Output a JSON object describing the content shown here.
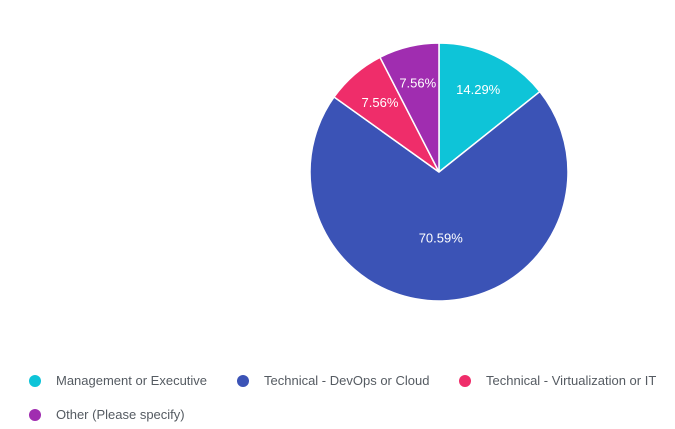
{
  "chart_data": {
    "type": "pie",
    "categories": [
      "Management or Executive",
      "Technical - DevOps or Cloud",
      "Technical - Virtualization or IT",
      "Other (Please specify)"
    ],
    "values": [
      14.29,
      70.59,
      7.56,
      7.56
    ],
    "labels": [
      "14.29%",
      "70.59%",
      "7.56%",
      "7.56%"
    ],
    "colors": [
      "#0ec4d8",
      "#3b53b6",
      "#ef2d6a",
      "#a02db0"
    ],
    "title": "",
    "legend_position": "bottom"
  }
}
